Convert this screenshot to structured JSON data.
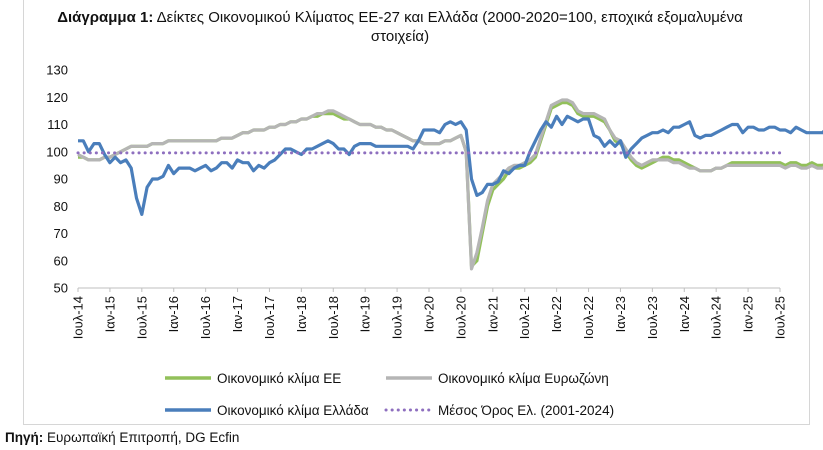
{
  "title": {
    "bold": "Διάγραμμα 1:",
    "text": "Δείκτες Οικονομικού Κλίματος ΕΕ-27 και Ελλάδα (2000-2020=100, εποχικά εξομαλυμένα στοιχεία)"
  },
  "source": {
    "bold": "Πηγή:",
    "text": "Ευρωπαϊκή Επιτροπή, DG Ecfin"
  },
  "chart_data": {
    "type": "line",
    "ylim": [
      50,
      130
    ],
    "yticks": [
      50,
      60,
      70,
      80,
      90,
      100,
      110,
      120,
      130
    ],
    "xtick_labels": [
      "Ιουλ-14",
      "Ιαν-15",
      "Ιουλ-15",
      "Ιαν-16",
      "Ιουλ-16",
      "Ιαν-17",
      "Ιουλ-17",
      "Ιαν-18",
      "Ιουλ-18",
      "Ιαν-19",
      "Ιουλ-19",
      "Ιαν-20",
      "Ιουλ-20",
      "Ιαν-21",
      "Ιουλ-21",
      "Ιαν-22",
      "Ιουλ-22",
      "Ιαν-23",
      "Ιουλ-23",
      "Ιαν-24",
      "Ιουλ-24",
      "Ιαν-25",
      "Ιουλ-25"
    ],
    "grid": false,
    "legend_position": "bottom",
    "series": [
      {
        "name": "Οικονομικό κλίμα ΕΕ",
        "color": "#92c05a",
        "style": "solid",
        "values": [
          98,
          98,
          97,
          97,
          97,
          98,
          98,
          99,
          100,
          101,
          102,
          102,
          102,
          102,
          103,
          103,
          103,
          104,
          104,
          104,
          104,
          104,
          104,
          104,
          104,
          104,
          104,
          105,
          105,
          105,
          106,
          107,
          107,
          108,
          108,
          108,
          109,
          109,
          110,
          110,
          111,
          111,
          112,
          112,
          113,
          113,
          114,
          114,
          114,
          113,
          112,
          112,
          111,
          110,
          110,
          110,
          109,
          109,
          108,
          108,
          107,
          106,
          105,
          104,
          104,
          103,
          103,
          103,
          103,
          104,
          104,
          105,
          106,
          100,
          58,
          60,
          70,
          80,
          86,
          88,
          90,
          93,
          94,
          94,
          95,
          96,
          98,
          104,
          110,
          116,
          117,
          118,
          118,
          117,
          114,
          113,
          113,
          113,
          112,
          111,
          108,
          104,
          103,
          100,
          97,
          95,
          94,
          95,
          96,
          97,
          98,
          98,
          97,
          97,
          96,
          95,
          94,
          93,
          93,
          93,
          94,
          94,
          95,
          96,
          96,
          96,
          96,
          96,
          96,
          96,
          96,
          96,
          96,
          95,
          96,
          96,
          95,
          95,
          96,
          95,
          95,
          96
        ]
      },
      {
        "name": "Οικονομικό κλίμα Ευρωζώνη",
        "color": "#b5b5b5",
        "style": "solid",
        "values": [
          99,
          98,
          97,
          97,
          97,
          98,
          98,
          99,
          100,
          101,
          102,
          102,
          102,
          102,
          103,
          103,
          103,
          104,
          104,
          104,
          104,
          104,
          104,
          104,
          104,
          104,
          104,
          105,
          105,
          105,
          106,
          107,
          107,
          108,
          108,
          108,
          109,
          109,
          110,
          110,
          111,
          111,
          112,
          112,
          113,
          114,
          114,
          115,
          115,
          114,
          113,
          112,
          111,
          110,
          110,
          110,
          109,
          109,
          108,
          108,
          107,
          106,
          105,
          104,
          104,
          103,
          103,
          103,
          103,
          104,
          104,
          105,
          106,
          100,
          57,
          63,
          72,
          82,
          88,
          90,
          92,
          94,
          95,
          95,
          96,
          97,
          99,
          105,
          111,
          117,
          118,
          119,
          119,
          118,
          115,
          114,
          114,
          114,
          113,
          112,
          108,
          105,
          104,
          101,
          98,
          96,
          95,
          96,
          97,
          97,
          97,
          97,
          96,
          96,
          95,
          94,
          94,
          93,
          93,
          93,
          94,
          94,
          95,
          95,
          95,
          95,
          95,
          95,
          95,
          95,
          95,
          95,
          95,
          94,
          95,
          95,
          94,
          94,
          95,
          94,
          94,
          95
        ]
      },
      {
        "name": "Οικονομικό κλίμα Ελλάδα",
        "color": "#4a7ebb",
        "style": "solid",
        "values": [
          104,
          104,
          100,
          103,
          103,
          99,
          96,
          98,
          96,
          97,
          94,
          83,
          77,
          87,
          90,
          90,
          91,
          95,
          92,
          94,
          94,
          94,
          93,
          94,
          95,
          93,
          94,
          96,
          96,
          94,
          97,
          96,
          96,
          93,
          95,
          94,
          96,
          97,
          99,
          101,
          101,
          100,
          99,
          101,
          101,
          102,
          103,
          104,
          103,
          101,
          101,
          99,
          102,
          103,
          103,
          103,
          102,
          102,
          102,
          102,
          102,
          102,
          102,
          101,
          104,
          108,
          108,
          108,
          107,
          110,
          111,
          110,
          111,
          108,
          90,
          84,
          85,
          88,
          88,
          89,
          93,
          92,
          94,
          95,
          95,
          100,
          104,
          108,
          111,
          109,
          113,
          110,
          113,
          112,
          111,
          112,
          112,
          106,
          105,
          102,
          104,
          102,
          104,
          98,
          101,
          103,
          105,
          106,
          107,
          107,
          108,
          107,
          109,
          109,
          110,
          111,
          106,
          105,
          106,
          106,
          107,
          108,
          109,
          110,
          110,
          107,
          109,
          109,
          108,
          108,
          109,
          109,
          108,
          108,
          107,
          109,
          108,
          107,
          107,
          107,
          107,
          109
        ]
      },
      {
        "name": "Μέσος Όρος Ελ. (2001-2024)",
        "color": "#8e6fbf",
        "style": "dotted",
        "values": [
          99.6
        ]
      }
    ]
  }
}
